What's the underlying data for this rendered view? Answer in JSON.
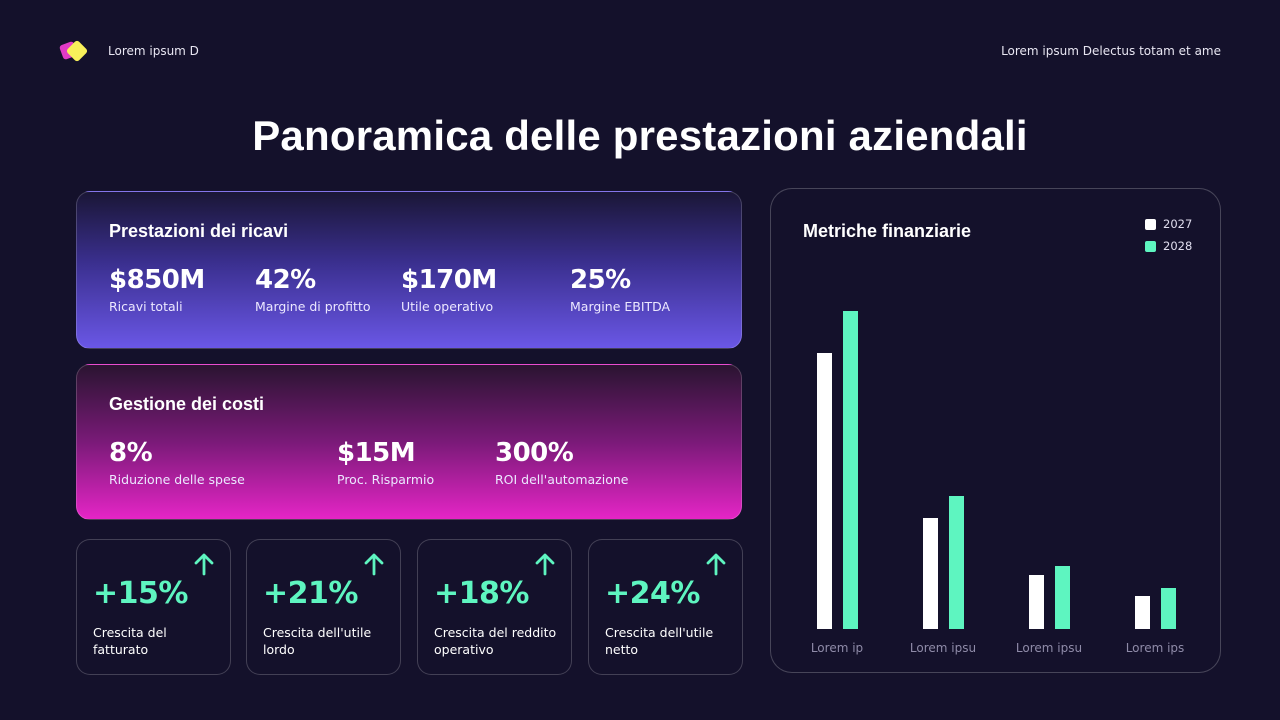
{
  "header": {
    "brand": "Lorem ipsum D",
    "tagline": "Lorem ipsum Delectus totam et ame",
    "logo_colors": {
      "back": "#e23bc6",
      "front": "#f8f05a"
    }
  },
  "title": "Panoramica delle prestazioni aziendali",
  "revenue": {
    "title": "Prestazioni dei ricavi",
    "metrics": [
      {
        "value": "$850M",
        "label": "Ricavi totali"
      },
      {
        "value": "42%",
        "label": "Margine di profitto"
      },
      {
        "value": "$170M",
        "label": "Utile operativo"
      },
      {
        "value": "25%",
        "label": "Margine EBITDA"
      }
    ]
  },
  "costs": {
    "title": "Gestione dei costi",
    "metrics": [
      {
        "value": "8%",
        "label": "Riduzione delle spese"
      },
      {
        "value": "$15M",
        "label": "Proc. Risparmio"
      },
      {
        "value": "300%",
        "label": "ROI dell'automazione"
      }
    ]
  },
  "growth": [
    {
      "value": "+15%",
      "label": "Crescita del fatturato",
      "icon": "arrow-up-icon"
    },
    {
      "value": "+21%",
      "label": "Crescita dell'utile lordo",
      "icon": "arrow-up-icon"
    },
    {
      "value": "+18%",
      "label": "Crescita del reddito operativo",
      "icon": "arrow-up-icon"
    },
    {
      "value": "+24%",
      "label": "Crescita dell'utile netto",
      "icon": "arrow-up-icon"
    }
  ],
  "colors": {
    "background": "#14112b",
    "accent_green": "#5ef5c0",
    "series_2027": "#ffffff",
    "series_2028": "#5ef5c0",
    "revenue_gradient_end": "#6a57e6",
    "costs_gradient_end": "#e525c6"
  },
  "chart_data": {
    "type": "bar",
    "title": "Metriche finanziarie",
    "categories": [
      "Lorem ip",
      "Lorem ipsu",
      "Lorem ipsu",
      "Lorem ips"
    ],
    "series": [
      {
        "name": "2027",
        "color": "#ffffff",
        "values": [
          276,
          111,
          54,
          33
        ]
      },
      {
        "name": "2028",
        "color": "#5ef5c0",
        "values": [
          318,
          133,
          63,
          41
        ]
      }
    ],
    "xlabel": "",
    "ylabel": "",
    "ylim": [
      0,
      330
    ],
    "grid": false,
    "legend_position": "top-right",
    "note": "values are relative bar heights (no y-axis shown)"
  }
}
